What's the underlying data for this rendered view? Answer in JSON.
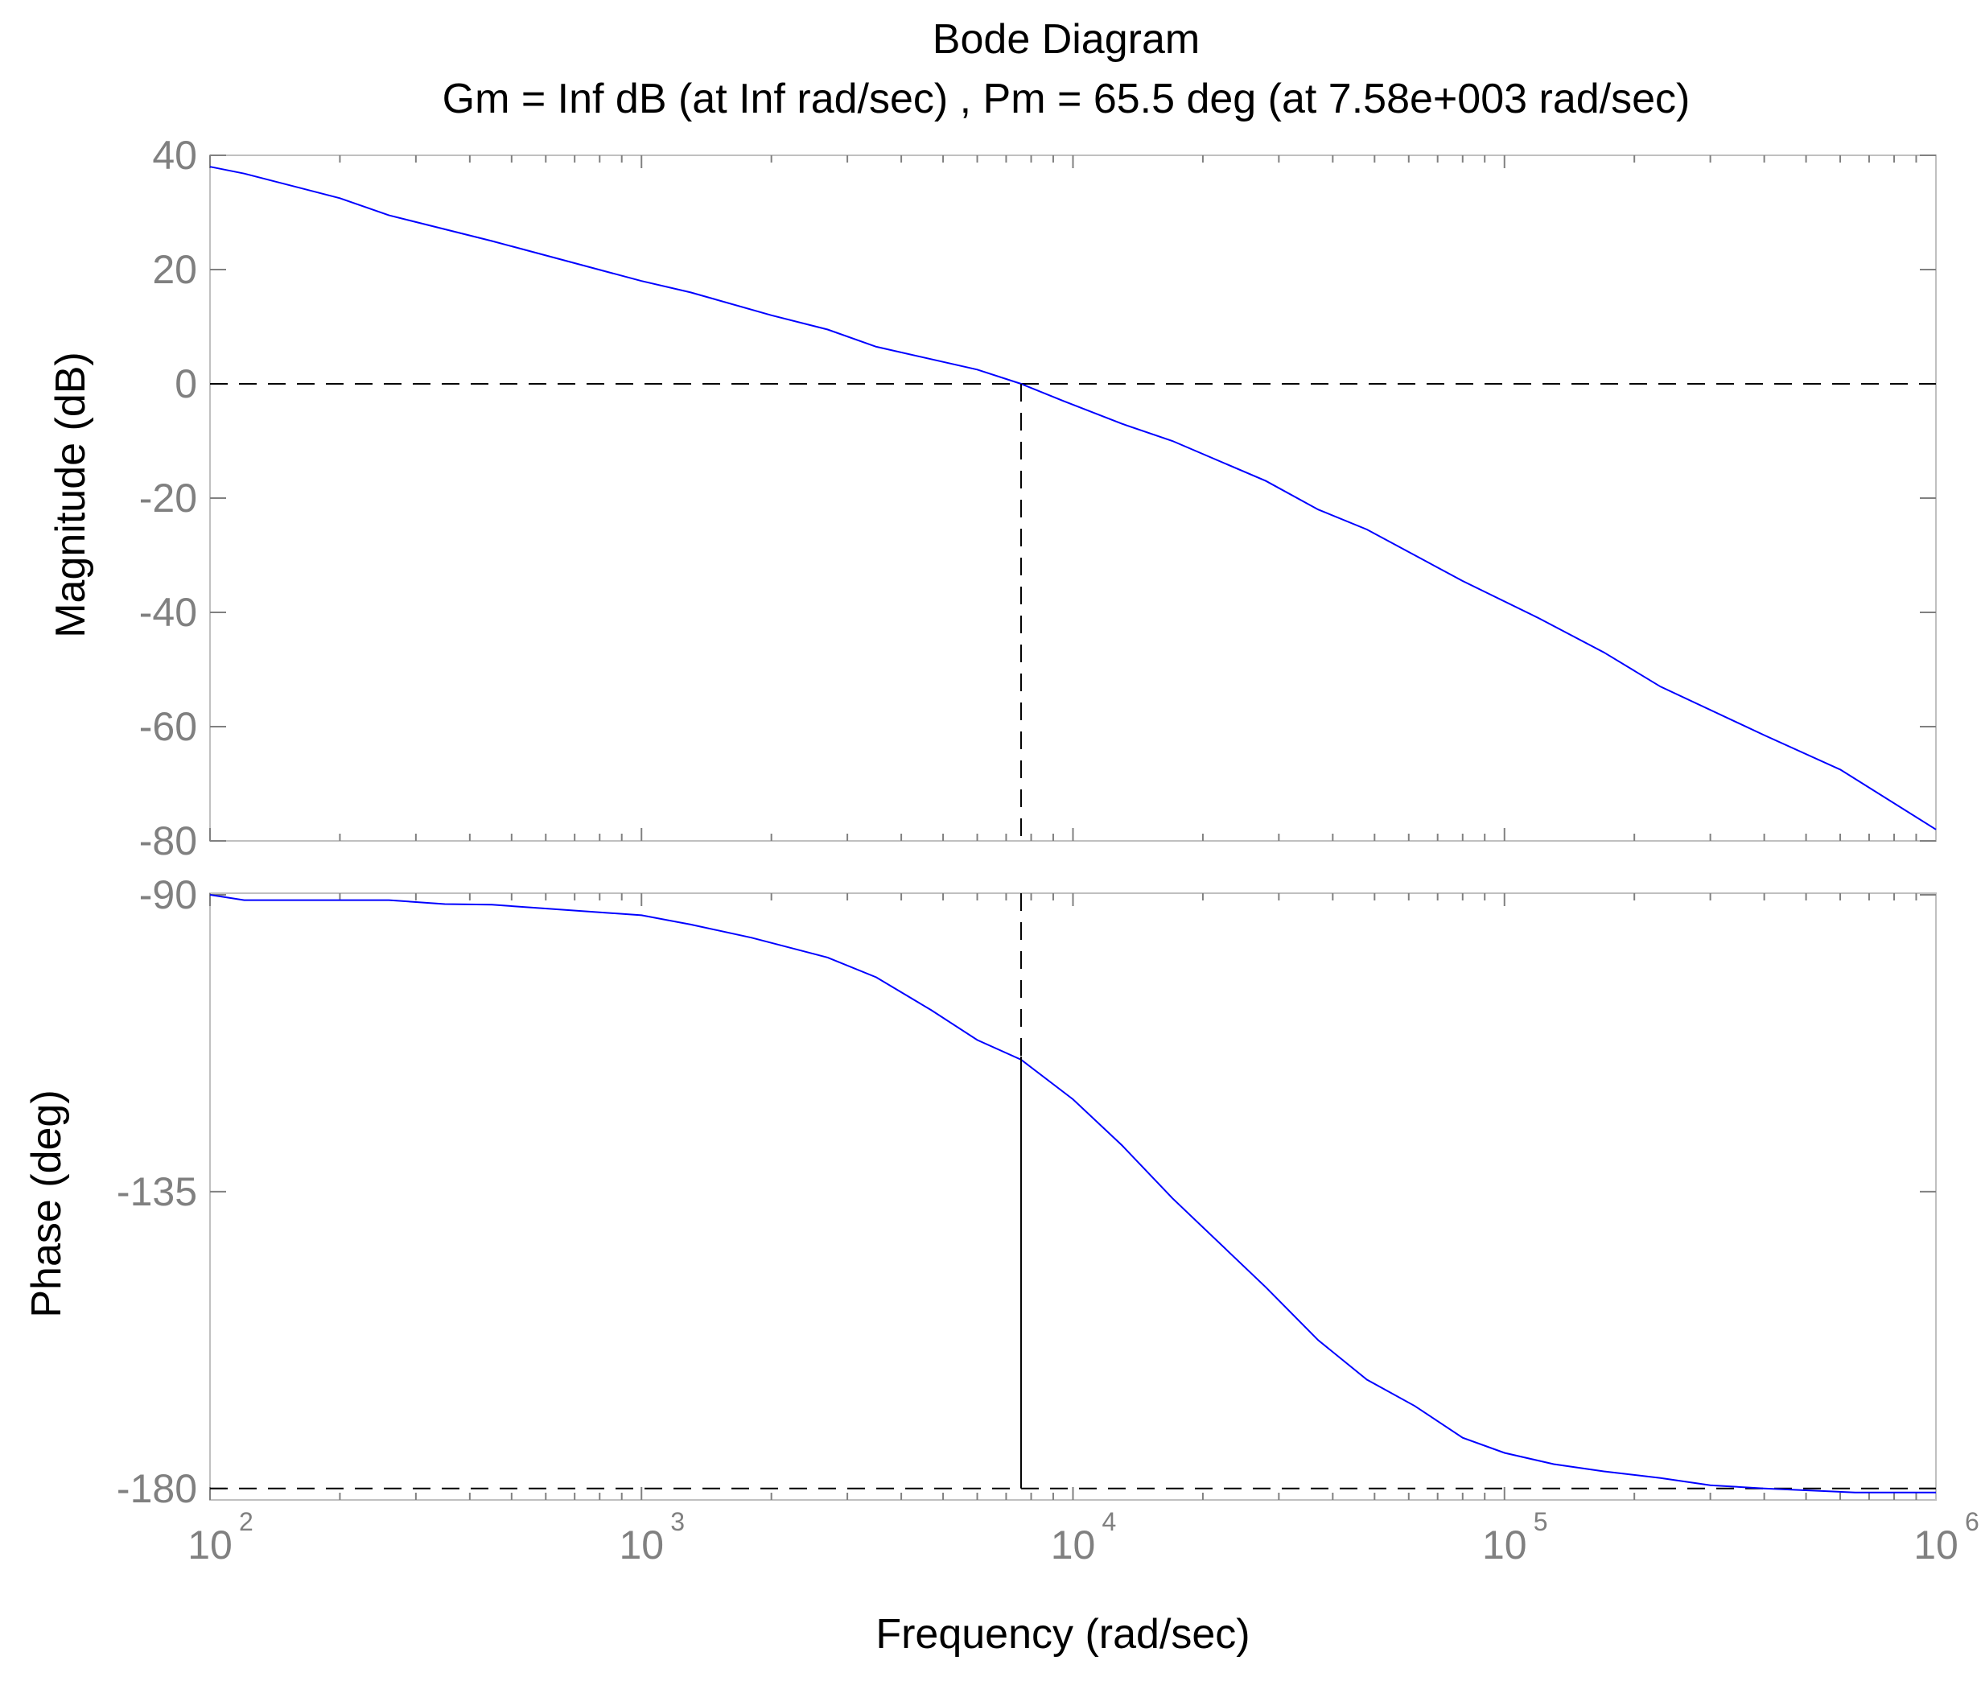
{
  "chart_data": {
    "type": "line",
    "title": "Bode Diagram",
    "subtitle": "Gm = Inf dB (at Inf rad/sec) ,  Pm = 65.5 deg (at 7.58e+003 rad/sec)",
    "xlabel": "Frequency  (rad/sec)",
    "x_scale": "log",
    "xlim": [
      100,
      1000000
    ],
    "x_ticks": [
      {
        "base": "10",
        "exp": "2",
        "value": 100
      },
      {
        "base": "10",
        "exp": "3",
        "value": 1000
      },
      {
        "base": "10",
        "exp": "4",
        "value": 10000
      },
      {
        "base": "10",
        "exp": "5",
        "value": 100000
      },
      {
        "base": "10",
        "exp": "6",
        "value": 1000000
      }
    ],
    "crossover_frequency": 7580,
    "line_color": "#0000ff",
    "margin_line_color": "#000000",
    "grid": false,
    "panels": [
      {
        "ylabel": "Magnitude (dB)",
        "ylim": [
          -80,
          40
        ],
        "yticks": [
          "40",
          "20",
          "0",
          "-20",
          "-40",
          "-60",
          "-80"
        ],
        "ytick_values": [
          40,
          20,
          0,
          -20,
          -40,
          -60,
          -80
        ],
        "reference_value": 0,
        "x": [
          100,
          120,
          200,
          260,
          450,
          1000,
          1300,
          2000,
          2700,
          3500,
          6000,
          7580,
          9500,
          13000,
          17000,
          28000,
          37000,
          48000,
          80000,
          120000,
          170000,
          230000,
          400000,
          600000,
          1000000
        ],
        "y": [
          38,
          36.8,
          32.5,
          29.5,
          25,
          18,
          16,
          12,
          9.5,
          6.5,
          2.5,
          0,
          -3,
          -7,
          -10,
          -17,
          -22,
          -25.5,
          -34.5,
          -41,
          -47,
          -53,
          -61.5,
          -67.5,
          -78
        ]
      },
      {
        "ylabel": "Phase (deg)",
        "ylim": [
          -181,
          -90
        ],
        "yticks": [
          "-90",
          "-135",
          "-180"
        ],
        "ytick_values": [
          -90,
          -135,
          -180
        ],
        "reference_value": -180,
        "margin_value": -114.5,
        "x": [
          100,
          120,
          260,
          350,
          450,
          1000,
          1300,
          1800,
          2700,
          3500,
          4700,
          6000,
          7580,
          10000,
          13000,
          17000,
          28000,
          37000,
          48000,
          62000,
          80000,
          100000,
          130000,
          170000,
          230000,
          300000,
          400000,
          650000,
          1000000
        ],
        "y": [
          -90,
          -90.8,
          -90.8,
          -91.4,
          -91.5,
          -93.1,
          -94.5,
          -96.5,
          -99.5,
          -102.5,
          -107.5,
          -112,
          -115,
          -121,
          -128,
          -136,
          -149.5,
          -157.5,
          -163.5,
          -167.5,
          -172.3,
          -174.6,
          -176.3,
          -177.4,
          -178.4,
          -179.5,
          -180,
          -180.6,
          -180.6
        ]
      }
    ]
  }
}
